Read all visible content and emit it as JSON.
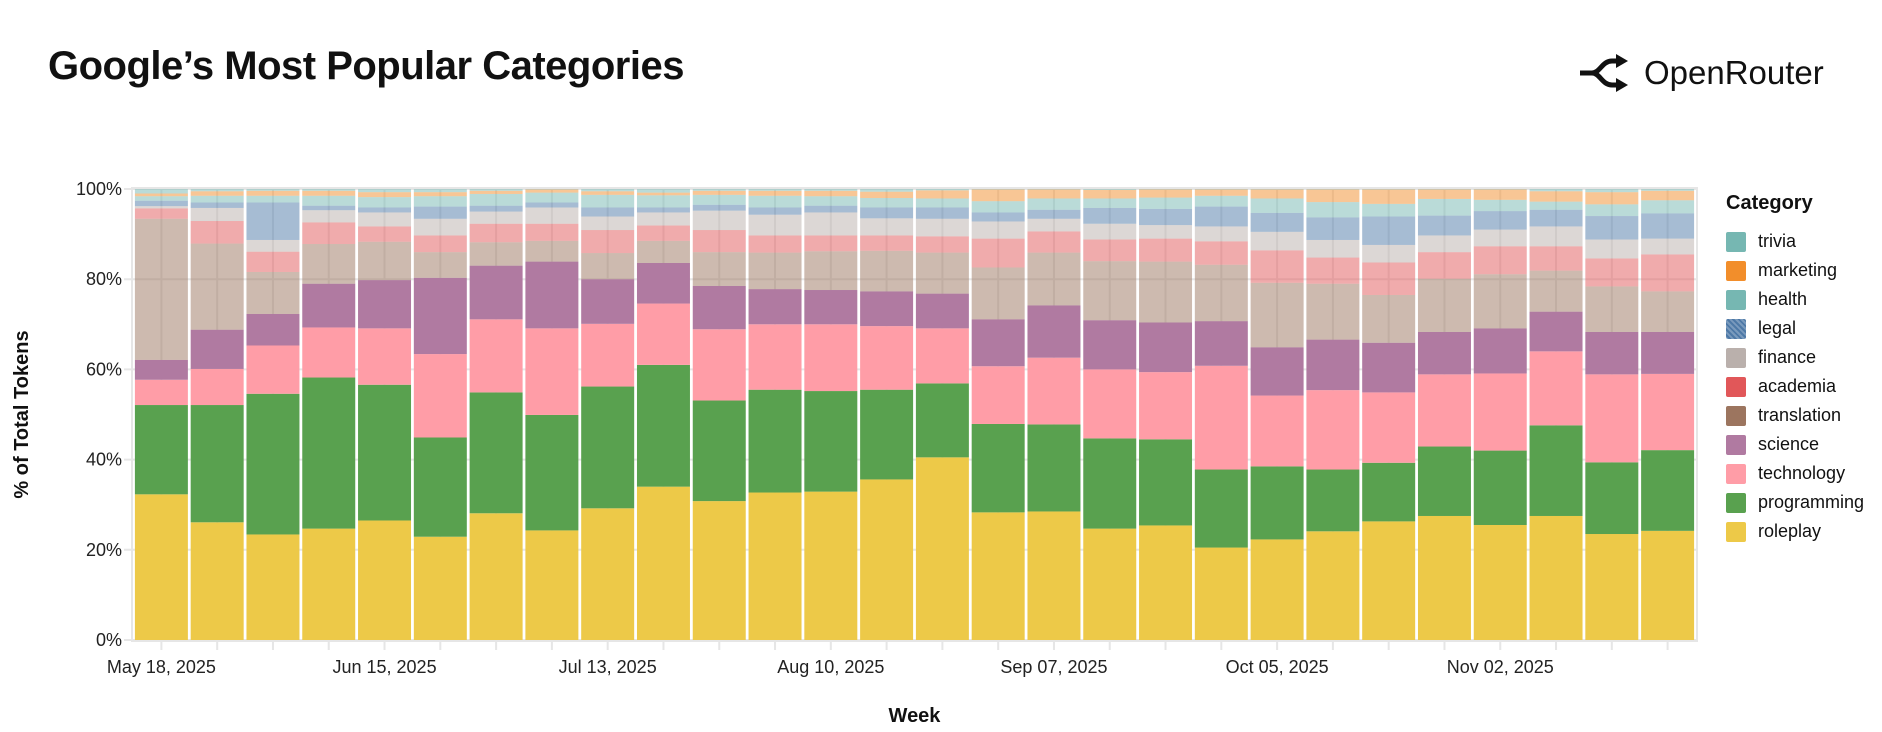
{
  "title": "Google’s Most Popular Categories",
  "brand": "OpenRouter",
  "chart_data": {
    "type": "bar",
    "stacked": true,
    "normalized": true,
    "xlabel": "Week",
    "ylabel": "% of Total Tokens",
    "ylim": [
      0,
      100
    ],
    "yticks": [
      "0%",
      "20%",
      "40%",
      "60%",
      "80%",
      "100%"
    ],
    "xtick_labels": [
      {
        "index": 0,
        "label": "May 18, 2025"
      },
      {
        "index": 4,
        "label": "Jun 15, 2025"
      },
      {
        "index": 8,
        "label": "Jul 13, 2025"
      },
      {
        "index": 12,
        "label": "Aug 10, 2025"
      },
      {
        "index": 16,
        "label": "Sep 07, 2025"
      },
      {
        "index": 20,
        "label": "Oct 05, 2025"
      },
      {
        "index": 24,
        "label": "Nov 02, 2025"
      }
    ],
    "categories": [
      "2025-05-18",
      "2025-05-25",
      "2025-06-01",
      "2025-06-08",
      "2025-06-15",
      "2025-06-22",
      "2025-06-29",
      "2025-07-06",
      "2025-07-13",
      "2025-07-20",
      "2025-07-27",
      "2025-08-03",
      "2025-08-10",
      "2025-08-17",
      "2025-08-24",
      "2025-08-31",
      "2025-09-07",
      "2025-09-14",
      "2025-09-21",
      "2025-09-28",
      "2025-10-05",
      "2025-10-12",
      "2025-10-19",
      "2025-10-26",
      "2025-11-02",
      "2025-11-09",
      "2025-11-16",
      "2025-11-23"
    ],
    "grid": true,
    "legend_title": "Category",
    "legend_position": "right",
    "series": [
      {
        "name": "roleplay",
        "color": "#EDC948",
        "faded": false,
        "values": [
          32.3,
          26.1,
          23.4,
          24.7,
          26.5,
          22.9,
          28.1,
          24.3,
          29.2,
          34.0,
          30.8,
          32.7,
          32.9,
          35.6,
          40.5,
          28.3,
          28.5,
          24.7,
          25.4,
          20.5,
          22.3,
          24.1,
          26.3,
          27.5,
          25.5,
          27.5,
          23.5,
          24.2
        ]
      },
      {
        "name": "programming",
        "color": "#59A14F",
        "faded": false,
        "values": [
          19.8,
          26.0,
          31.2,
          33.5,
          30.1,
          22.0,
          26.8,
          25.6,
          27.0,
          27.0,
          22.3,
          22.8,
          22.3,
          19.9,
          16.4,
          19.6,
          19.3,
          20.0,
          19.1,
          17.3,
          16.2,
          13.7,
          13.0,
          15.4,
          16.5,
          20.1,
          15.9,
          17.9
        ]
      },
      {
        "name": "technology",
        "color": "#FF9DA7",
        "faded": false,
        "values": [
          5.6,
          8.0,
          10.7,
          11.1,
          12.5,
          18.5,
          16.2,
          19.2,
          13.9,
          13.6,
          15.8,
          14.5,
          14.8,
          14.1,
          12.2,
          12.8,
          14.8,
          15.3,
          14.9,
          23.0,
          15.7,
          17.6,
          15.6,
          16.0,
          17.1,
          16.4,
          19.5,
          16.9
        ]
      },
      {
        "name": "science",
        "color": "#B07AA1",
        "faded": false,
        "values": [
          4.4,
          8.7,
          7.0,
          9.7,
          10.7,
          16.9,
          11.9,
          14.8,
          9.9,
          9.0,
          9.6,
          7.8,
          7.6,
          7.7,
          7.7,
          10.4,
          11.6,
          10.9,
          11.0,
          9.9,
          10.7,
          11.2,
          11.0,
          9.4,
          10.0,
          8.8,
          9.4,
          9.3
        ]
      },
      {
        "name": "translation",
        "color": "#9C755F",
        "faded": true,
        "values": [
          31.3,
          19.1,
          9.3,
          8.8,
          8.5,
          5.7,
          5.2,
          4.6,
          5.8,
          4.9,
          7.5,
          8.1,
          8.6,
          9.0,
          9.1,
          11.5,
          11.7,
          13.1,
          13.5,
          12.5,
          14.3,
          12.4,
          10.6,
          11.8,
          12.0,
          9.1,
          10.1,
          9.0
        ]
      },
      {
        "name": "academia",
        "color": "#E15759",
        "faded": true,
        "values": [
          2.3,
          5.0,
          4.5,
          4.8,
          3.4,
          3.7,
          4.1,
          3.8,
          5.1,
          3.4,
          4.9,
          3.8,
          3.5,
          3.4,
          3.6,
          6.4,
          4.7,
          4.8,
          5.1,
          5.2,
          7.2,
          5.8,
          7.2,
          5.9,
          6.2,
          5.4,
          6.2,
          8.2
        ]
      },
      {
        "name": "finance",
        "color": "#BAB0AC",
        "faded": true,
        "values": [
          0.5,
          2.9,
          2.6,
          2.7,
          3.1,
          3.7,
          2.7,
          3.6,
          3.0,
          2.9,
          4.3,
          4.6,
          5.1,
          3.8,
          3.9,
          3.8,
          2.8,
          3.5,
          3.0,
          3.3,
          4.1,
          3.9,
          3.9,
          3.7,
          3.7,
          4.4,
          4.2,
          3.5
        ]
      },
      {
        "name": "legal",
        "color": "#4E79A7",
        "faded": true,
        "values": [
          1.2,
          1.2,
          8.3,
          1.0,
          1.1,
          2.7,
          1.3,
          1.1,
          2.0,
          1.1,
          1.3,
          1.6,
          1.5,
          2.4,
          2.5,
          2.0,
          2.0,
          3.5,
          3.6,
          4.4,
          4.2,
          5.0,
          6.3,
          4.4,
          4.1,
          3.7,
          5.2,
          5.6
        ]
      },
      {
        "name": "health",
        "color": "#76B7B2",
        "faded": true,
        "values": [
          1.0,
          1.5,
          1.5,
          2.2,
          2.3,
          2.3,
          2.6,
          2.2,
          2.8,
          2.7,
          2.2,
          2.6,
          2.1,
          2.1,
          2.0,
          2.5,
          2.5,
          2.1,
          2.5,
          2.4,
          3.2,
          3.4,
          2.8,
          3.7,
          2.5,
          1.8,
          2.6,
          2.9
        ]
      },
      {
        "name": "marketing",
        "color": "#F28E2B",
        "faded": true,
        "values": [
          0.6,
          1.0,
          1.1,
          1.1,
          1.1,
          0.9,
          0.7,
          0.7,
          0.8,
          0.6,
          0.9,
          1.1,
          1.2,
          1.4,
          1.8,
          2.6,
          2.0,
          1.9,
          1.8,
          1.4,
          2.0,
          2.8,
          3.2,
          2.1,
          2.3,
          2.3,
          2.7,
          2.1
        ]
      },
      {
        "name": "trivia",
        "color": "#76B7B2",
        "faded": true,
        "values": [
          1.0,
          0.5,
          0.4,
          0.4,
          0.7,
          0.7,
          0.4,
          0.1,
          0.5,
          0.8,
          0.4,
          0.4,
          0.4,
          0.6,
          0.3,
          0.1,
          0.1,
          0.2,
          0.1,
          0.1,
          0.1,
          0.1,
          0.1,
          0.1,
          0.1,
          0.5,
          0.7,
          0.4
        ]
      }
    ],
    "legend_order": [
      "trivia",
      "marketing",
      "health",
      "legal",
      "finance",
      "academia",
      "translation",
      "science",
      "technology",
      "programming",
      "roleplay"
    ]
  }
}
